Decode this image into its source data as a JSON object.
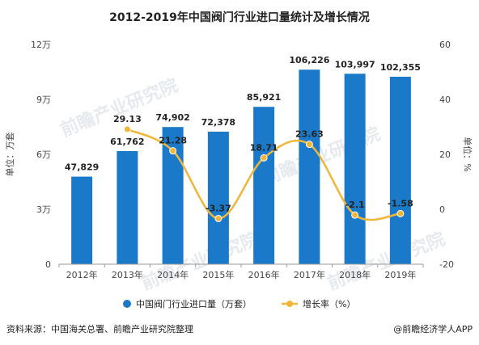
{
  "chart_data": {
    "type": "bar",
    "title": "2012-2019年中国阀门行业进口量统计及增长情况",
    "categories": [
      "2012年",
      "2013年",
      "2014年",
      "2015年",
      "2016年",
      "2017年",
      "2018年",
      "2019年"
    ],
    "series": [
      {
        "name": "中国阀门行业进口量（万套）",
        "type": "bar",
        "axis": "left",
        "color": "#1a7ac9",
        "values": [
          47829,
          61762,
          74902,
          72378,
          85921,
          106226,
          103997,
          102355
        ],
        "labels": [
          "47,829",
          "61,762",
          "74,902",
          "72,378",
          "85,921",
          "106,226",
          "103,997",
          "102,355"
        ]
      },
      {
        "name": "增长率（%）",
        "type": "line",
        "axis": "right",
        "color": "#f0b63a",
        "values": [
          null,
          29.13,
          21.28,
          -3.37,
          18.71,
          23.63,
          -2.1,
          -1.58
        ],
        "labels": [
          "",
          "29.13",
          "21.28",
          "-3.37",
          "18.71",
          "23.63",
          "-2.1",
          "-1.58"
        ]
      }
    ],
    "ylabel": "单位：万套",
    "ylabel_right": "单位：%",
    "ylim": [
      0,
      120000
    ],
    "yticks": [
      0,
      30000,
      60000,
      90000,
      120000
    ],
    "yticklabels": [
      "0",
      "3万",
      "6万",
      "9万",
      "12万"
    ],
    "ylim_right": [
      -20,
      60
    ],
    "yticks_right": [
      -20,
      0,
      20,
      40,
      60
    ],
    "yticklabels_right": [
      "-20",
      "0",
      "20",
      "40",
      "60"
    ],
    "grid": false,
    "legend_position": "bottom"
  },
  "footer": {
    "source": "资料来源：中国海关总署、前瞻产业研究院整理",
    "brand": "@前瞻经济学人APP"
  },
  "watermark": "前瞻产业研究院"
}
